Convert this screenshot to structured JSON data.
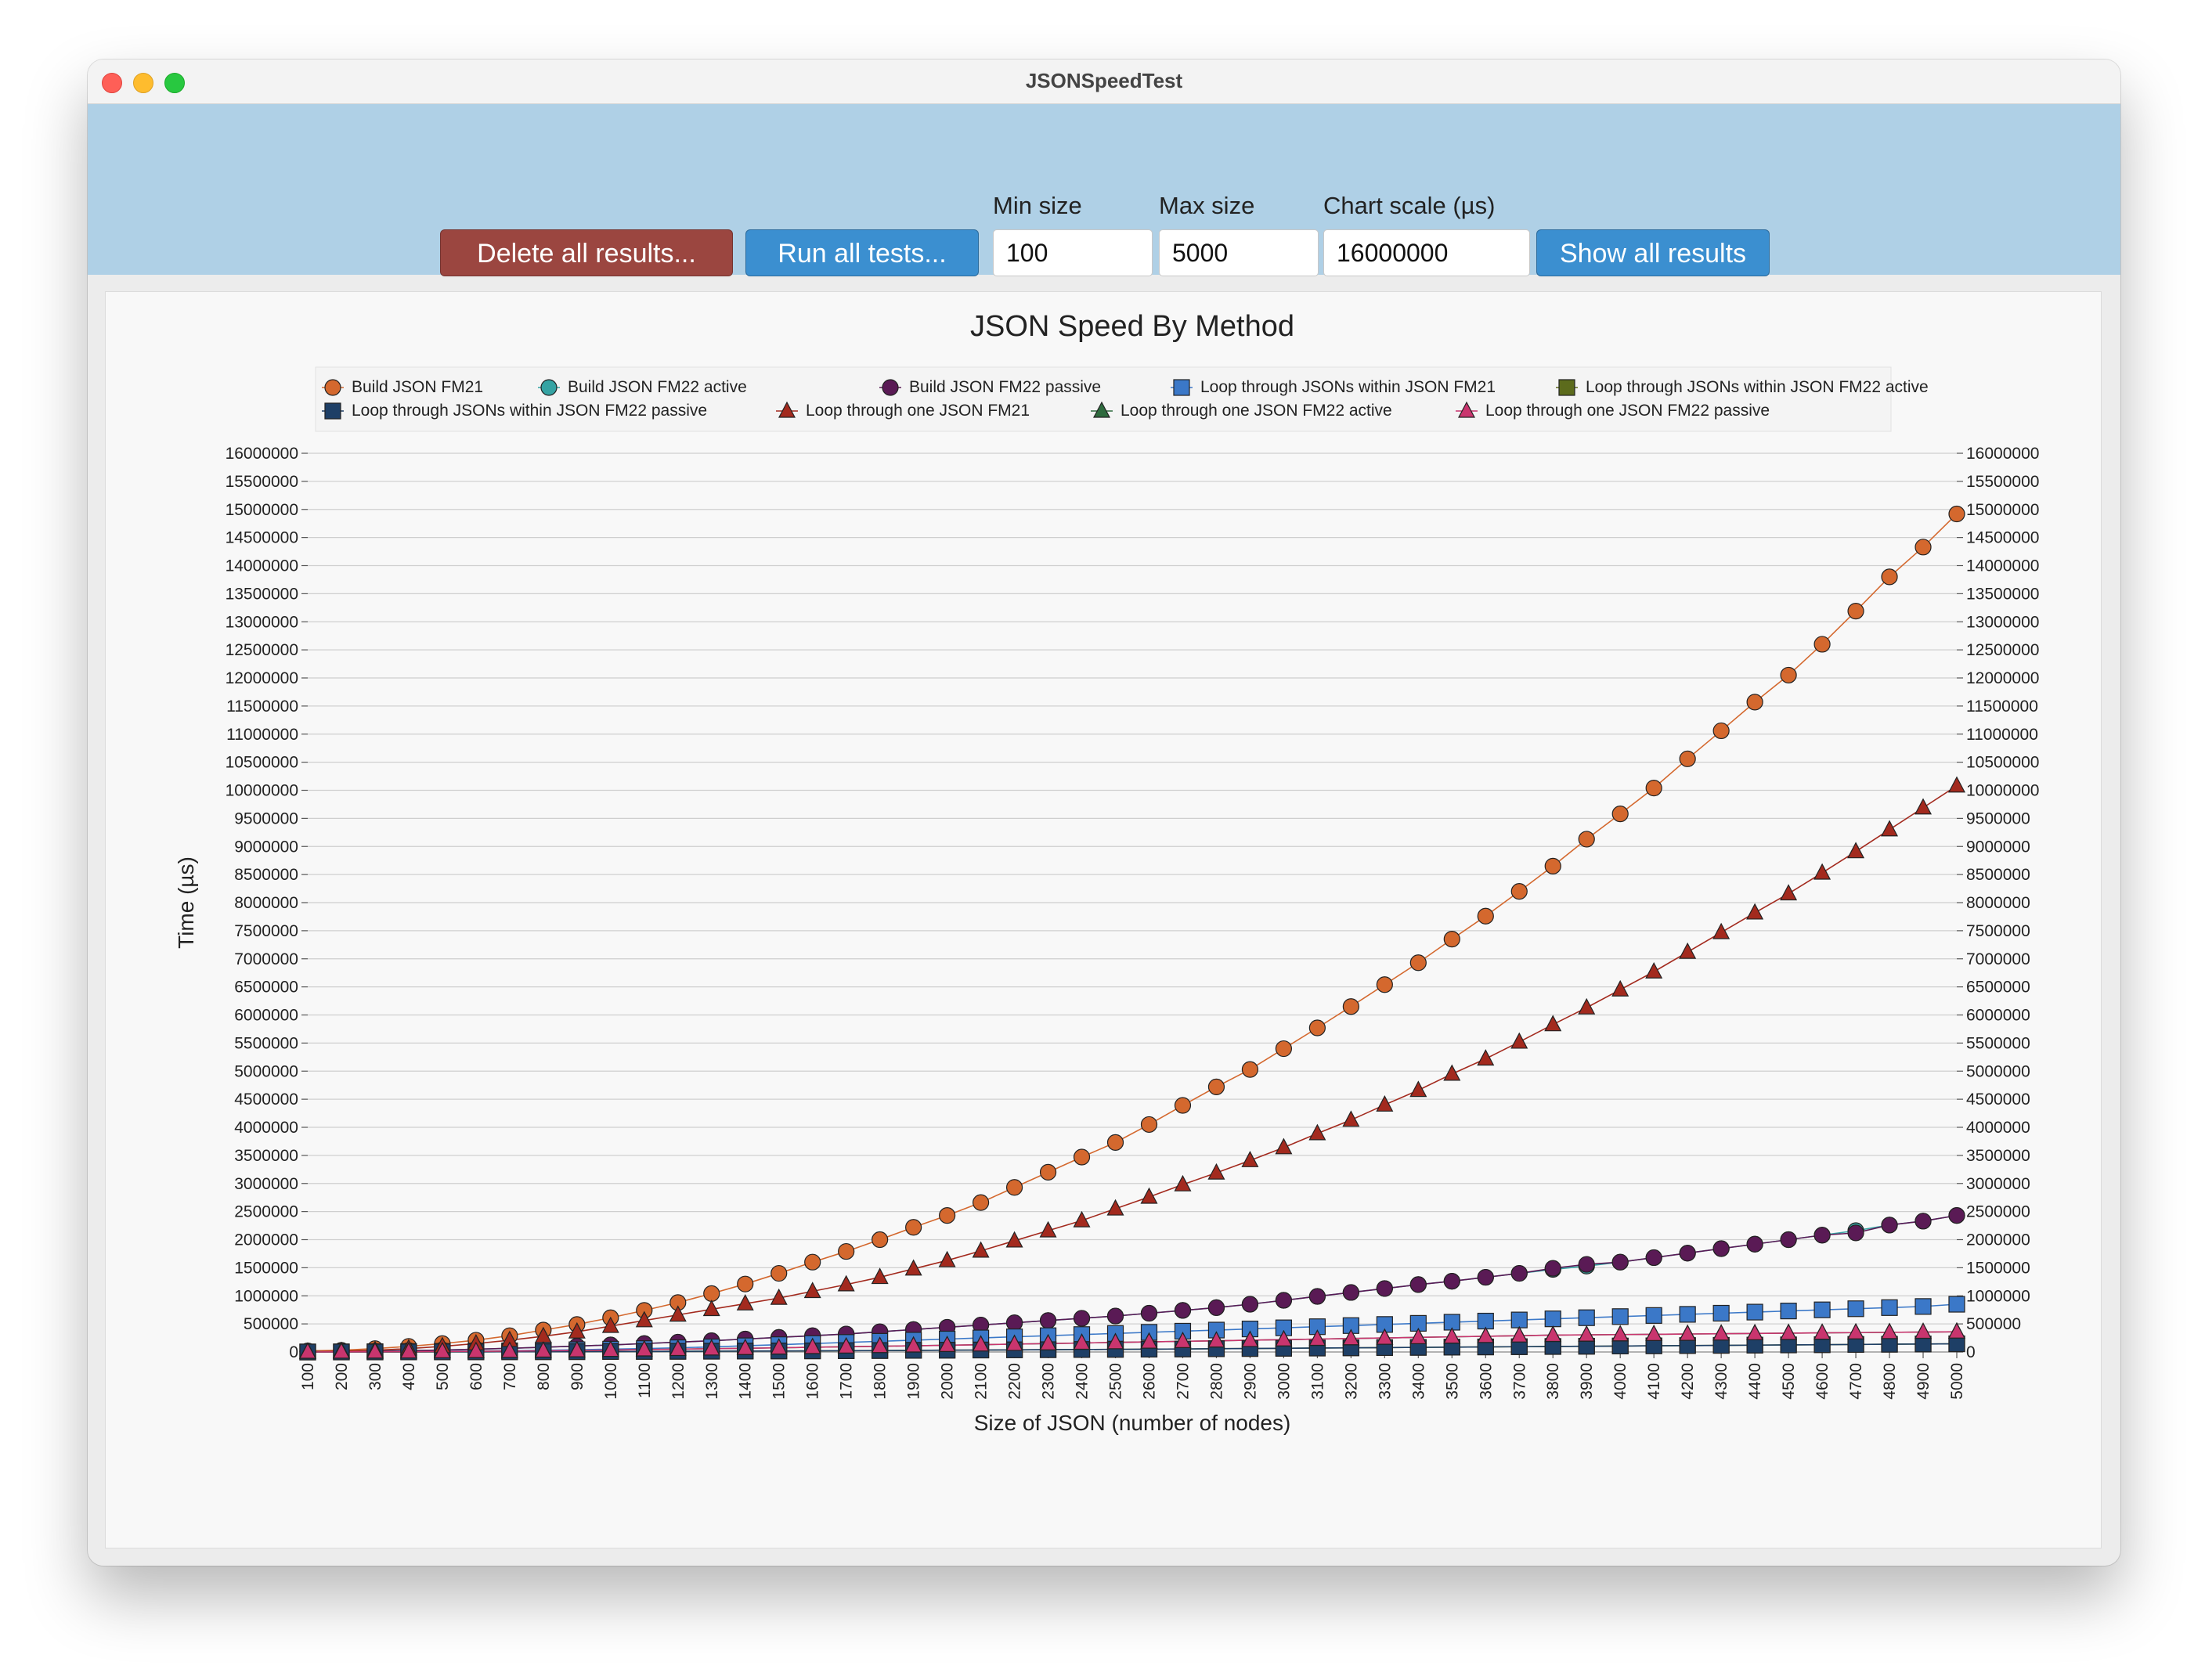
{
  "window": {
    "title": "JSONSpeedTest"
  },
  "toolbar": {
    "delete_label": "Delete all results...",
    "run_label": "Run all tests...",
    "show_label": "Show all results",
    "min_label": "Min size",
    "min_value": "100",
    "max_label": "Max size",
    "max_value": "5000",
    "scale_label": "Chart scale (µs)",
    "scale_value": "16000000"
  },
  "colors": {
    "delete_button": "#9b4640",
    "primary_button": "#3b8fd0",
    "toolbar_bg": "#afd0e6"
  },
  "chart_data": {
    "type": "line",
    "title": "JSON Speed By Method",
    "xlabel": "Size of JSON (number of nodes)",
    "ylabel": "Time (µs)",
    "ylim": [
      0,
      16000000
    ],
    "ytick_step": 500000,
    "grid": true,
    "legend_position": "top-center",
    "x": [
      100,
      200,
      300,
      400,
      500,
      600,
      700,
      800,
      900,
      1000,
      1100,
      1200,
      1300,
      1400,
      1500,
      1600,
      1700,
      1800,
      1900,
      2000,
      2100,
      2200,
      2300,
      2400,
      2500,
      2600,
      2700,
      2800,
      2900,
      3000,
      3100,
      3200,
      3300,
      3400,
      3500,
      3600,
      3700,
      3800,
      3900,
      4000,
      4100,
      4200,
      4300,
      4400,
      4500,
      4600,
      4700,
      4800,
      4900,
      5000
    ],
    "series": [
      {
        "name": "Build JSON FM21",
        "marker": "circle",
        "color": "#d4682e",
        "values": [
          20000,
          30000,
          60000,
          100000,
          150000,
          210000,
          290000,
          390000,
          490000,
          610000,
          740000,
          880000,
          1040000,
          1210000,
          1400000,
          1600000,
          1790000,
          2000000,
          2220000,
          2430000,
          2660000,
          2930000,
          3200000,
          3470000,
          3730000,
          4050000,
          4390000,
          4720000,
          5030000,
          5400000,
          5770000,
          6150000,
          6540000,
          6930000,
          7350000,
          7760000,
          8200000,
          8650000,
          9130000,
          9580000,
          10040000,
          10560000,
          11060000,
          11570000,
          12050000,
          12600000,
          13190000,
          13800000,
          14330000,
          14920000
        ]
      },
      {
        "name": "Build JSON FM22 active",
        "marker": "circle",
        "color": "#35a3a3",
        "values": [
          5000,
          10000,
          15000,
          25000,
          35000,
          50000,
          65000,
          85000,
          105000,
          125000,
          150000,
          175000,
          200000,
          230000,
          260000,
          290000,
          320000,
          360000,
          400000,
          440000,
          480000,
          520000,
          560000,
          600000,
          640000,
          690000,
          740000,
          790000,
          850000,
          920000,
          990000,
          1060000,
          1130000,
          1200000,
          1260000,
          1330000,
          1400000,
          1470000,
          1530000,
          1600000,
          1680000,
          1760000,
          1840000,
          1920000,
          2000000,
          2080000,
          2160000,
          2260000,
          2330000,
          2430000
        ]
      },
      {
        "name": "Build JSON FM22 passive",
        "marker": "circle",
        "color": "#5a1a55",
        "values": [
          5000,
          10000,
          15000,
          25000,
          35000,
          50000,
          65000,
          85000,
          105000,
          125000,
          150000,
          175000,
          200000,
          230000,
          260000,
          290000,
          320000,
          360000,
          400000,
          440000,
          480000,
          520000,
          560000,
          600000,
          640000,
          690000,
          740000,
          790000,
          850000,
          920000,
          990000,
          1060000,
          1130000,
          1200000,
          1260000,
          1330000,
          1400000,
          1490000,
          1560000,
          1600000,
          1680000,
          1760000,
          1840000,
          1920000,
          2000000,
          2080000,
          2120000,
          2260000,
          2330000,
          2430000
        ]
      },
      {
        "name": "Loop through JSONs within JSON FM21",
        "marker": "square",
        "color": "#3b78c8",
        "values": [
          0,
          2000,
          5000,
          8000,
          12000,
          16000,
          22000,
          30000,
          40000,
          50000,
          60000,
          75000,
          90000,
          110000,
          130000,
          150000,
          170000,
          190000,
          210000,
          230000,
          250000,
          270000,
          290000,
          310000,
          330000,
          350000,
          370000,
          390000,
          410000,
          430000,
          450000,
          470000,
          490000,
          510000,
          530000,
          550000,
          570000,
          590000,
          610000,
          630000,
          650000,
          670000,
          690000,
          710000,
          730000,
          750000,
          770000,
          790000,
          810000,
          850000
        ]
      },
      {
        "name": "Loop through JSONs within JSON FM22 active",
        "marker": "square",
        "color": "#5c6b1c",
        "values": [
          0,
          500,
          1000,
          1500,
          2000,
          3000,
          4000,
          5000,
          6000,
          8000,
          10000,
          12000,
          14000,
          16000,
          18000,
          20000,
          23000,
          26000,
          29000,
          32000,
          35000,
          38000,
          41000,
          44000,
          47000,
          50000,
          54000,
          58000,
          62000,
          66000,
          70000,
          74000,
          78000,
          82000,
          86000,
          90000,
          94000,
          98000,
          102000,
          106000,
          110000,
          114000,
          118000,
          122000,
          126000,
          130000,
          134000,
          138000,
          142000,
          146000
        ]
      },
      {
        "name": "Loop through JSONs within JSON FM22 passive",
        "marker": "square",
        "color": "#1e3f66",
        "values": [
          0,
          500,
          1000,
          1500,
          2000,
          3000,
          4000,
          5000,
          6000,
          8000,
          10000,
          12000,
          14000,
          16000,
          18000,
          20000,
          23000,
          26000,
          29000,
          32000,
          35000,
          38000,
          41000,
          44000,
          47000,
          50000,
          54000,
          58000,
          62000,
          66000,
          70000,
          74000,
          78000,
          82000,
          86000,
          90000,
          94000,
          98000,
          102000,
          106000,
          110000,
          114000,
          118000,
          122000,
          126000,
          130000,
          134000,
          138000,
          142000,
          146000
        ]
      },
      {
        "name": "Loop through one JSON FM21",
        "marker": "triangle",
        "color": "#a32a1e",
        "values": [
          5000,
          15000,
          30000,
          60000,
          100000,
          150000,
          210000,
          280000,
          360000,
          460000,
          560000,
          660000,
          760000,
          860000,
          960000,
          1080000,
          1200000,
          1330000,
          1480000,
          1630000,
          1800000,
          1980000,
          2160000,
          2340000,
          2550000,
          2760000,
          2980000,
          3190000,
          3410000,
          3640000,
          3890000,
          4130000,
          4400000,
          4660000,
          4950000,
          5220000,
          5520000,
          5830000,
          6130000,
          6450000,
          6770000,
          7120000,
          7470000,
          7820000,
          8160000,
          8530000,
          8910000,
          9300000,
          9690000,
          10080000
        ]
      },
      {
        "name": "Loop through one JSON FM22 active",
        "marker": "triangle",
        "color": "#2e6b3e",
        "values": [
          0,
          2000,
          4000,
          6000,
          9000,
          12000,
          16000,
          21000,
          27000,
          34000,
          42000,
          50000,
          58000,
          66000,
          75000,
          84000,
          93000,
          102000,
          111000,
          120000,
          130000,
          140000,
          150000,
          160000,
          170000,
          180000,
          190000,
          200000,
          210000,
          220000,
          230000,
          240000,
          250000,
          260000,
          270000,
          280000,
          290000,
          300000,
          305000,
          310000,
          315000,
          320000,
          325000,
          330000,
          335000,
          340000,
          345000,
          350000,
          355000,
          360000
        ]
      },
      {
        "name": "Loop through one JSON FM22 passive",
        "marker": "triangle",
        "color": "#c9356e",
        "values": [
          0,
          2000,
          4000,
          6000,
          9000,
          12000,
          16000,
          21000,
          27000,
          34000,
          42000,
          50000,
          58000,
          66000,
          75000,
          84000,
          93000,
          102000,
          111000,
          120000,
          130000,
          140000,
          150000,
          160000,
          170000,
          180000,
          190000,
          200000,
          210000,
          220000,
          230000,
          240000,
          250000,
          260000,
          270000,
          280000,
          290000,
          300000,
          305000,
          310000,
          315000,
          320000,
          325000,
          330000,
          335000,
          340000,
          345000,
          350000,
          355000,
          360000
        ]
      }
    ]
  }
}
